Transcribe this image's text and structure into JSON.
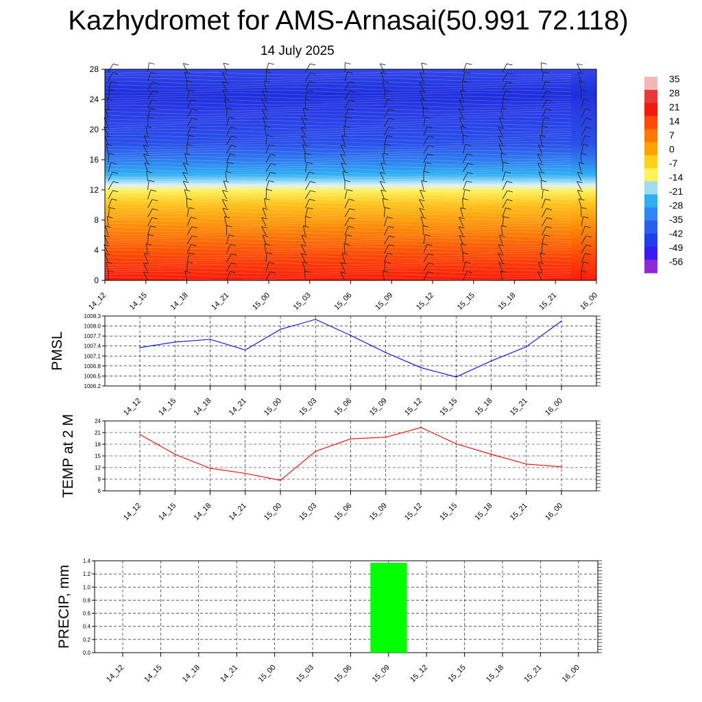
{
  "page": {
    "title": "Kazhydromet for AMS-Arnasai(50.991 72.118)",
    "subtitle": "14 July 2025"
  },
  "colors": {
    "pmsl_line": "#0000ff",
    "temp_line": "#ff0000",
    "precip_bar": "#00ff00",
    "colorbar": [
      "#8e2bd9",
      "#3b1cf0",
      "#1f3fe8",
      "#2a5fee",
      "#2f86f2",
      "#2fb0f4",
      "#9fdcef",
      "#fff25a",
      "#ffd21a",
      "#ffa20a",
      "#ff7a05",
      "#ff4a04",
      "#f21a10",
      "#e83a3a",
      "#f2b7b7"
    ]
  },
  "chart_data": [
    {
      "type": "heatmap",
      "title": "",
      "xlabel": "",
      "ylabel": "",
      "x_tick_labels": [
        "14_12",
        "14_15",
        "14_18",
        "14_21",
        "15_00",
        "15_03",
        "15_06",
        "15_09",
        "15_12",
        "15_15",
        "15_18",
        "15_21",
        "16_00"
      ],
      "y_ticks": [
        0,
        4,
        8,
        12,
        16,
        20,
        24,
        28
      ],
      "ylim": [
        0,
        28
      ],
      "colorbar_labels": [
        "35",
        "28",
        "21",
        "14",
        "7",
        "0",
        "-7",
        "-14",
        "-21",
        "-28",
        "-35",
        "-42",
        "-49",
        "-56"
      ],
      "zero_level_y": 12,
      "grid": false
    },
    {
      "type": "line",
      "ylabel": "PMSL",
      "x": [
        "14_12",
        "14_15",
        "14_18",
        "14_21",
        "15_00",
        "15_03",
        "15_06",
        "15_09",
        "15_12",
        "15_15",
        "15_18",
        "15_21",
        "16_00"
      ],
      "y_ticks": [
        "1006.2",
        "1006.5",
        "1006.8",
        "1007.1",
        "1007.4",
        "1007.7",
        "1008.0",
        "1008.3"
      ],
      "ylim": [
        1006.2,
        1008.3
      ],
      "series": [
        {
          "values": [
            1007.35,
            1007.52,
            1007.6,
            1007.28,
            1007.9,
            1008.2,
            1007.72,
            1007.2,
            1006.75,
            1006.47,
            1006.95,
            1007.38,
            1008.15
          ]
        }
      ],
      "grid": true
    },
    {
      "type": "line",
      "ylabel": "TEMP at 2 M",
      "x": [
        "14_12",
        "14_15",
        "14_18",
        "14_21",
        "15_00",
        "15_03",
        "15_06",
        "15_09",
        "15_12",
        "15_15",
        "15_18",
        "15_21",
        "16_00"
      ],
      "y_ticks": [
        "6",
        "9",
        "12",
        "15",
        "18",
        "21",
        "24"
      ],
      "ylim": [
        6,
        24
      ],
      "series": [
        {
          "values": [
            20.5,
            15.4,
            11.8,
            10.5,
            8.7,
            16.2,
            19.4,
            19.8,
            22.3,
            18.1,
            15.4,
            12.9,
            12.2
          ]
        }
      ],
      "grid": true
    },
    {
      "type": "bar",
      "ylabel": "PRECIP, mm",
      "categories": [
        "14_12",
        "14_15",
        "14_18",
        "14_21",
        "15_00",
        "15_03",
        "15_06",
        "15_09",
        "15_12",
        "15_15",
        "15_18",
        "15_21",
        "16_00"
      ],
      "y_ticks": [
        "0.0",
        "0.2",
        "0.4",
        "0.6",
        "0.8",
        "1.0",
        "1.2",
        "1.4"
      ],
      "ylim": [
        0,
        1.4
      ],
      "values": [
        0,
        0,
        0,
        0,
        0,
        0,
        0,
        1.37,
        0,
        0,
        0,
        0,
        0
      ],
      "grid": true
    }
  ]
}
